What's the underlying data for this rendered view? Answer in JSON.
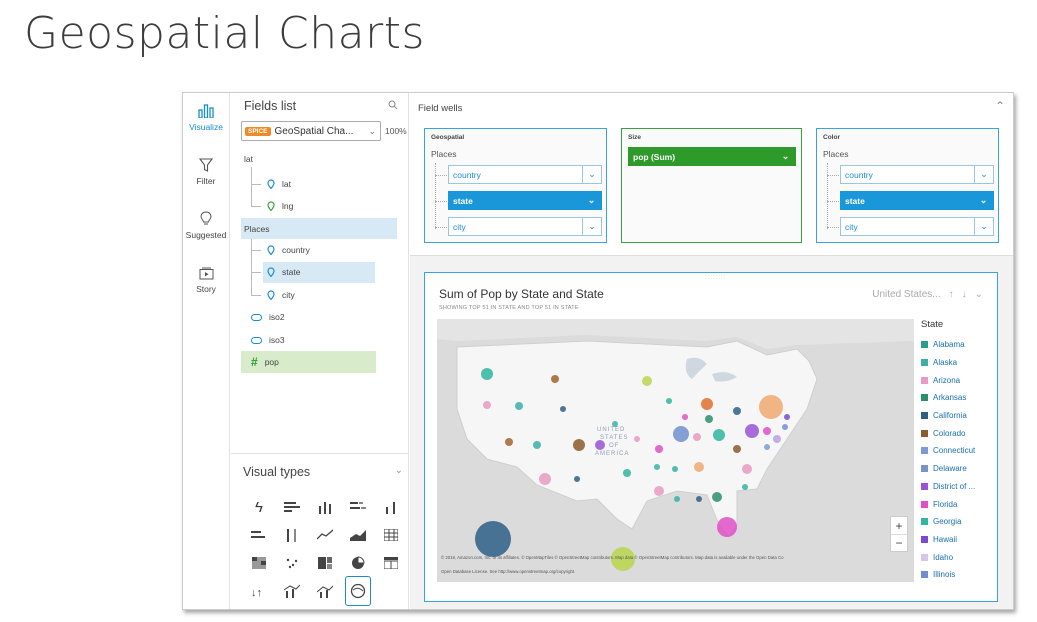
{
  "slide_title": "Geospatial Charts",
  "nav": {
    "items": [
      {
        "label": "Visualize",
        "icon": "bar-chart-icon"
      },
      {
        "label": "Filter",
        "icon": "funnel-icon"
      },
      {
        "label": "Suggested",
        "icon": "lightbulb-icon"
      },
      {
        "label": "Story",
        "icon": "story-icon"
      }
    ]
  },
  "fields": {
    "title": "Fields list",
    "badge": "SPICE",
    "dataset": "GeoSpatial Cha...",
    "percent": "100%",
    "lat_group": "lat",
    "lat": "lat",
    "lng": "lng",
    "places_group": "Places",
    "country": "country",
    "state": "state",
    "city": "city",
    "iso2": "iso2",
    "iso3": "iso3",
    "pop": "pop"
  },
  "visual_types": {
    "title": "Visual types"
  },
  "field_wells": {
    "title": "Field wells",
    "geospatial": {
      "title": "Geospatial",
      "group": "Places",
      "items": [
        "country",
        "state",
        "city"
      ]
    },
    "size": {
      "title": "Size",
      "value": "pop (Sum)"
    },
    "color": {
      "title": "Color",
      "group": "Places",
      "items": [
        "country",
        "state",
        "city"
      ]
    }
  },
  "visual": {
    "title": "Sum of Pop by State and State",
    "subtitle": "SHOWING TOP 51 IN STATE AND TOP 51 IN STATE",
    "map_selector": "United States...",
    "map_label": "UNITED STATES OF AMERICA",
    "credit1": "© 2018, Amazon.com, Inc. or its affiliates. © OpenMapTiles © OpenStreetMap contributors. Map data © OpenStreetMap contributors. Map data is available under the Open Data Co",
    "credit2": "Open Database License. See http://www.openstreetmap.org/copyright.",
    "legend_title": "State",
    "legend": [
      {
        "name": "Alabama",
        "color": "#2a9d8f"
      },
      {
        "name": "Alaska",
        "color": "#3bb0a8"
      },
      {
        "name": "Arizona",
        "color": "#e79ac3"
      },
      {
        "name": "Arkansas",
        "color": "#2c8f6a"
      },
      {
        "name": "California",
        "color": "#2d5f86"
      },
      {
        "name": "Colorado",
        "color": "#8c5a2c"
      },
      {
        "name": "Connecticut",
        "color": "#7c9bd6"
      },
      {
        "name": "Delaware",
        "color": "#7b93c9"
      },
      {
        "name": "District of ...",
        "color": "#9a52d6"
      },
      {
        "name": "Florida",
        "color": "#e050c8"
      },
      {
        "name": "Georgia",
        "color": "#2fb5a0"
      },
      {
        "name": "Hawaii",
        "color": "#7a4ad0"
      },
      {
        "name": "Idaho",
        "color": "#d6c6e6"
      },
      {
        "name": "Illinois",
        "color": "#6f8fd0"
      }
    ]
  }
}
